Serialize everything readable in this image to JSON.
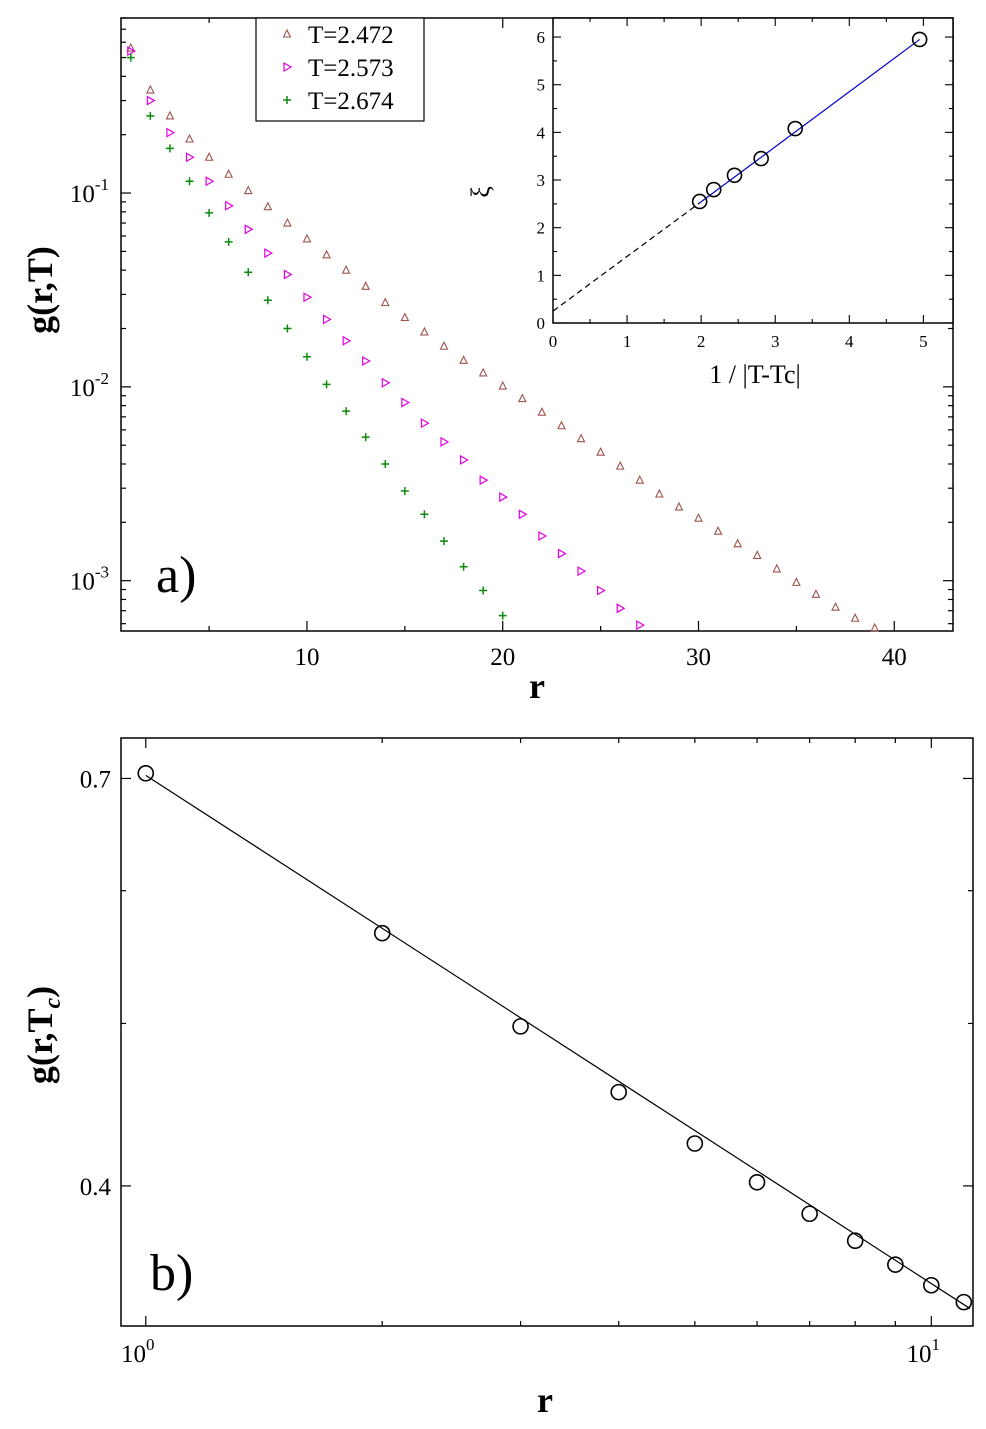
{
  "colors": {
    "t2472": "#a0524d",
    "t2573": "#e000e0",
    "t2674": "#0c8a0c",
    "fitline": "#0000cc",
    "axis": "#000000"
  },
  "chart_data": [
    {
      "type": "scatter",
      "panel_label": "a)",
      "xlabel": "r",
      "ylabel": "g(r,T)",
      "yscale": "log",
      "xlim": [
        0.5,
        43
      ],
      "ylim": [
        0.00055,
        0.8
      ],
      "xticks": [
        10,
        20,
        30,
        40
      ],
      "yticks": [
        0.1,
        0.01,
        0.001
      ],
      "ytick_labels": [
        {
          "base": "10",
          "exp": "-1"
        },
        {
          "base": "10",
          "exp": "-2"
        },
        {
          "base": "10",
          "exp": "-3"
        }
      ],
      "legend": {
        "position": "top",
        "entries": [
          "T=2.472",
          "T=2.573",
          "T=2.674"
        ]
      },
      "series": [
        {
          "name": "T=2.472",
          "marker": "triangle-up",
          "color": "#a0524d",
          "x": [
            1,
            2,
            3,
            4,
            5,
            6,
            7,
            8,
            9,
            10,
            11,
            12,
            13,
            14,
            15,
            16,
            17,
            18,
            19,
            20,
            21,
            22,
            23,
            24,
            25,
            26,
            27,
            28,
            29,
            30,
            31,
            32,
            33,
            34,
            35,
            36,
            37,
            38,
            39
          ],
          "y": [
            0.56,
            0.34,
            0.25,
            0.19,
            0.153,
            0.125,
            0.103,
            0.085,
            0.07,
            0.058,
            0.048,
            0.04,
            0.033,
            0.0272,
            0.0228,
            0.0192,
            0.0162,
            0.0137,
            0.0118,
            0.0101,
            0.0087,
            0.0074,
            0.0063,
            0.0054,
            0.0046,
            0.0039,
            0.0033,
            0.0028,
            0.0024,
            0.0021,
            0.0018,
            0.00155,
            0.00135,
            0.00115,
            0.00098,
            0.00085,
            0.00073,
            0.00064,
            0.00057
          ]
        },
        {
          "name": "T=2.573",
          "marker": "triangle-right",
          "color": "#e000e0",
          "x": [
            1,
            2,
            3,
            4,
            5,
            6,
            7,
            8,
            9,
            10,
            11,
            12,
            13,
            14,
            15,
            16,
            17,
            18,
            19,
            20,
            21,
            22,
            23,
            24,
            25,
            26,
            27
          ],
          "y": [
            0.54,
            0.3,
            0.205,
            0.153,
            0.115,
            0.086,
            0.065,
            0.049,
            0.038,
            0.029,
            0.0223,
            0.0173,
            0.0136,
            0.0105,
            0.0083,
            0.0065,
            0.0052,
            0.0042,
            0.0033,
            0.0027,
            0.0022,
            0.0017,
            0.00138,
            0.00112,
            0.00089,
            0.00072,
            0.00059
          ]
        },
        {
          "name": "T=2.674",
          "marker": "plus",
          "color": "#0c8a0c",
          "x": [
            1,
            2,
            3,
            4,
            5,
            6,
            7,
            8,
            9,
            10,
            11,
            12,
            13,
            14,
            15,
            16,
            17,
            18,
            19,
            20
          ],
          "y": [
            0.5,
            0.25,
            0.17,
            0.115,
            0.079,
            0.056,
            0.039,
            0.028,
            0.02,
            0.0143,
            0.0103,
            0.0075,
            0.0055,
            0.004,
            0.0029,
            0.0022,
            0.0016,
            0.00118,
            0.00089,
            0.00066
          ]
        }
      ],
      "inset": {
        "type": "scatter",
        "xlabel": "1 / |T-Tc|",
        "ylabel": "ξ",
        "xlim": [
          0,
          5.4
        ],
        "ylim": [
          0,
          6.4
        ],
        "xticks": [
          0,
          1,
          2,
          3,
          4,
          5
        ],
        "yticks": [
          0,
          1,
          2,
          3,
          4,
          5,
          6
        ],
        "points": {
          "x": [
            1.98,
            2.17,
            2.45,
            2.81,
            3.27,
            4.95
          ],
          "y": [
            2.55,
            2.8,
            3.1,
            3.45,
            4.08,
            5.95
          ]
        },
        "fit_line": {
          "x": [
            1.98,
            4.95
          ],
          "y": [
            2.52,
            5.95
          ],
          "color": "#0000cc"
        },
        "extrapolation": {
          "x": [
            0,
            1.98
          ],
          "y": [
            0.25,
            2.52
          ],
          "style": "dashed"
        }
      }
    },
    {
      "type": "scatter",
      "panel_label": "b)",
      "xlabel": "r",
      "ylabel": "g(r,Tc)",
      "xscale": "log",
      "yscale": "log",
      "xlim": [
        0.93,
        11.3
      ],
      "ylim": [
        0.33,
        0.74
      ],
      "xticks": [
        1,
        10
      ],
      "xtick_labels": [
        {
          "base": "10",
          "exp": "0"
        },
        {
          "base": "10",
          "exp": "1"
        }
      ],
      "yticks": [
        0.4,
        0.7
      ],
      "ytick_labels": [
        "0.4",
        "0.7"
      ],
      "points": {
        "x": [
          1,
          2,
          3,
          4,
          5,
          6,
          7,
          8,
          9,
          10,
          11
        ],
        "y": [
          0.705,
          0.566,
          0.498,
          0.455,
          0.424,
          0.402,
          0.385,
          0.371,
          0.359,
          0.349,
          0.341
        ]
      },
      "fit_line": {
        "x": [
          1,
          11.2
        ],
        "y": [
          0.703,
          0.338
        ]
      }
    }
  ]
}
